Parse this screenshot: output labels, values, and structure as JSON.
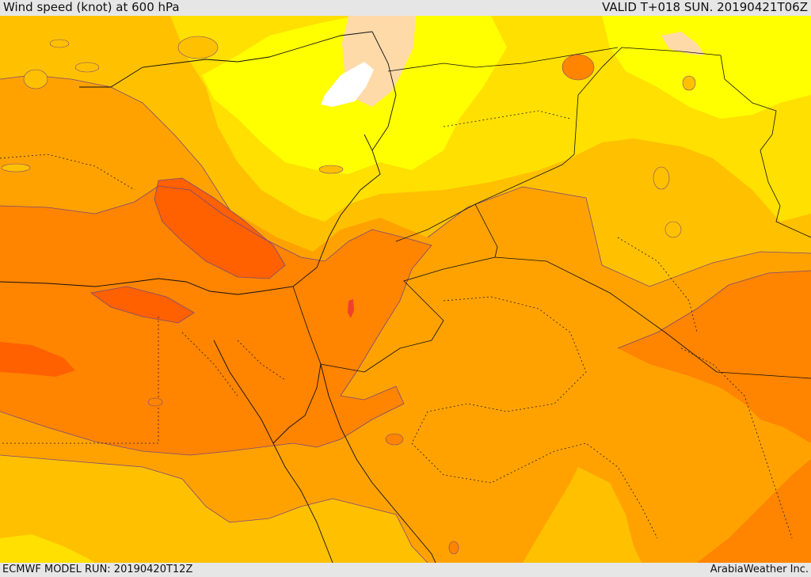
{
  "header": {
    "title": "Wind speed (knot) at 600 hPa",
    "valid": "VALID T+018 SUN. 20190421T06Z"
  },
  "footer": {
    "model_run": "ECMWF MODEL RUN: 20190420T12Z",
    "credit": "ArabiaWeather Inc."
  },
  "palette": {
    "white": "#ffffff",
    "cream": "#fedaa8",
    "bright_yellow": "#ffff00",
    "yellow": "#ffe000",
    "gold": "#ffc000",
    "amber": "#ffa200",
    "orange": "#ff8400",
    "dark_orange": "#ff6000",
    "red_orange": "#f04030"
  }
}
